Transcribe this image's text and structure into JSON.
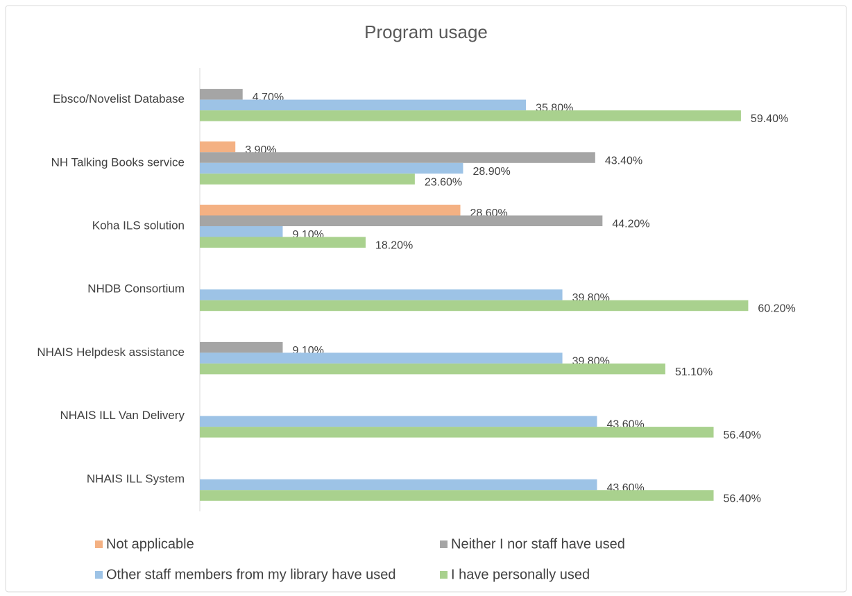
{
  "chart_data": {
    "type": "bar",
    "orientation": "horizontal",
    "title": "Program usage",
    "categories": [
      "Ebsco/Novelist Database",
      "NH Talking Books service",
      "Koha ILS solution",
      "NHDB Consortium",
      "NHAIS Helpdesk assistance",
      "NHAIS ILL Van Delivery",
      "NHAIS ILL System"
    ],
    "series": [
      {
        "name": "Not applicable",
        "color": "#f4b183",
        "values": [
          null,
          3.9,
          28.6,
          null,
          null,
          null,
          null
        ],
        "value_labels": [
          null,
          "3.90%",
          "28.60%",
          null,
          null,
          null,
          null
        ]
      },
      {
        "name": "Neither I nor staff have used",
        "color": "#a5a5a5",
        "values": [
          4.7,
          43.4,
          44.2,
          null,
          9.1,
          null,
          null
        ],
        "value_labels": [
          "4.70%",
          "43.40%",
          "44.20%",
          null,
          "9.10%",
          null,
          null
        ]
      },
      {
        "name": "Other staff members from my library have used",
        "color": "#9dc3e6",
        "values": [
          35.8,
          28.9,
          9.1,
          39.8,
          39.8,
          43.6,
          43.6
        ],
        "value_labels": [
          "35.80%",
          "28.90%",
          "9.10%",
          "39.80%",
          "39.80%",
          "43.60%",
          "43.60%"
        ]
      },
      {
        "name": "I have personally used",
        "color": "#a9d18e",
        "values": [
          59.4,
          23.6,
          18.2,
          60.2,
          51.1,
          56.4,
          56.4
        ],
        "value_labels": [
          "59.40%",
          "23.60%",
          "18.20%",
          "60.20%",
          "51.10%",
          "56.40%",
          "56.40%"
        ]
      }
    ],
    "legend": "bottom"
  }
}
